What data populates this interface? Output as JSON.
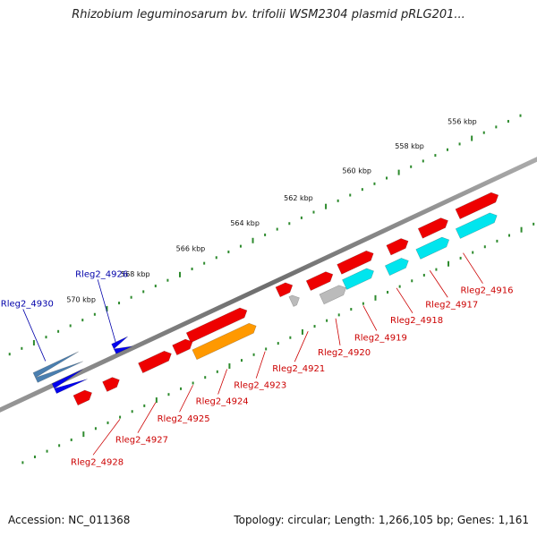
{
  "title": "Rhizobium leguminosarum bv. trifolii WSM2304 plasmid pRLG201...",
  "accession_label": "Accession: NC_011368",
  "topology_label": "Topology: circular; Length: 1,266,105 bp; Genes: 1,161",
  "colors": {
    "backbone": "#8a8a8a",
    "tick_dots": "#2e8b2e",
    "gene_label_red": "#cc0000",
    "gene_label_blue": "#0000aa",
    "cds_red": "#ee0000",
    "cds_orange": "#ff9900",
    "cds_cyan": "#00e5ee",
    "cds_blue": "#0000ee",
    "cds_steel": "#4a7fb0",
    "cds_gray": "#bbbbbb"
  },
  "tick_labels": [
    "556 kbp",
    "558 kbp",
    "560 kbp",
    "562 kbp",
    "564 kbp",
    "566 kbp",
    "568 kbp",
    "570 kbp"
  ],
  "gene_labels": [
    {
      "text": "Rleg2_4930",
      "color": "blue"
    },
    {
      "text": "Rleg2_4926",
      "color": "blue"
    },
    {
      "text": "Rleg2_4916",
      "color": "red"
    },
    {
      "text": "Rleg2_4917",
      "color": "red"
    },
    {
      "text": "Rleg2_4918",
      "color": "red"
    },
    {
      "text": "Rleg2_4919",
      "color": "red"
    },
    {
      "text": "Rleg2_4920",
      "color": "red"
    },
    {
      "text": "Rleg2_4921",
      "color": "red"
    },
    {
      "text": "Rleg2_4923",
      "color": "red"
    },
    {
      "text": "Rleg2_4924",
      "color": "red"
    },
    {
      "text": "Rleg2_4925",
      "color": "red"
    },
    {
      "text": "Rleg2_4927",
      "color": "red"
    },
    {
      "text": "Rleg2_4928",
      "color": "red"
    }
  ]
}
